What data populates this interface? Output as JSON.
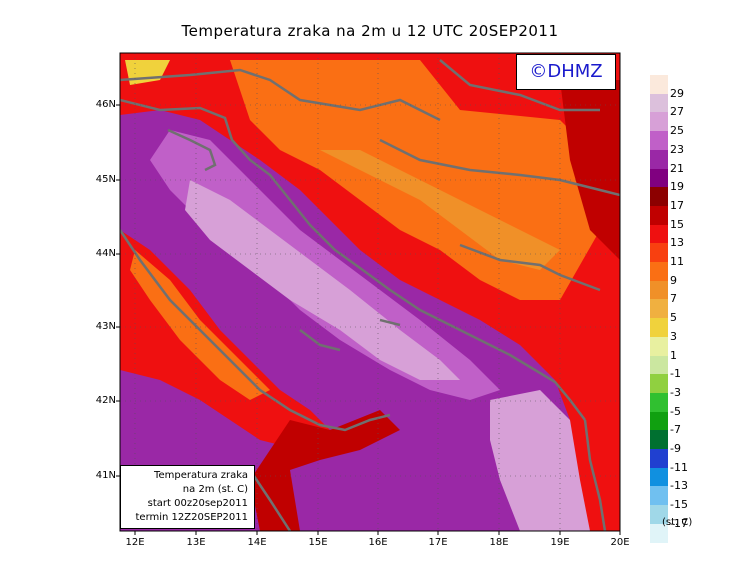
{
  "title": "Temperatura zraka na 2m u 12 UTC 20SEP2011",
  "badge": "©DHMZ",
  "info_box": {
    "line1": "Temperatura zraka",
    "line2": "na 2m (st. C)",
    "line3": "start 00z20sep2011",
    "line4": "termin 12Z20SEP2011"
  },
  "lat_labels": [
    "46N",
    "45N",
    "44N",
    "43N",
    "42N",
    "41N"
  ],
  "lon_labels": [
    "12E",
    "13E",
    "14E",
    "15E",
    "16E",
    "17E",
    "18E",
    "19E",
    "20E"
  ],
  "legend": {
    "unit": "(st. C)",
    "labels": [
      "29",
      "27",
      "25",
      "23",
      "21",
      "19",
      "17",
      "15",
      "13",
      "11",
      "9",
      "7",
      "5",
      "3",
      "1",
      "-1",
      "-3",
      "-5",
      "-7",
      "-9",
      "-11",
      "-13",
      "-15",
      "-17"
    ],
    "colors": [
      "#fbe9dc",
      "#dcc0dc",
      "#d7a0d7",
      "#c060c8",
      "#9a28a6",
      "#800080",
      "#8c0000",
      "#c00000",
      "#ef1010",
      "#f84010",
      "#fa6f14",
      "#f09028",
      "#f0b040",
      "#f0d23c",
      "#e8f0a0",
      "#cbe7a0",
      "#90d040",
      "#30c030",
      "#10a010",
      "#007030",
      "#2040d0",
      "#1090e0",
      "#70c0f0",
      "#a0d8e8",
      "#e0f4f8"
    ]
  }
}
